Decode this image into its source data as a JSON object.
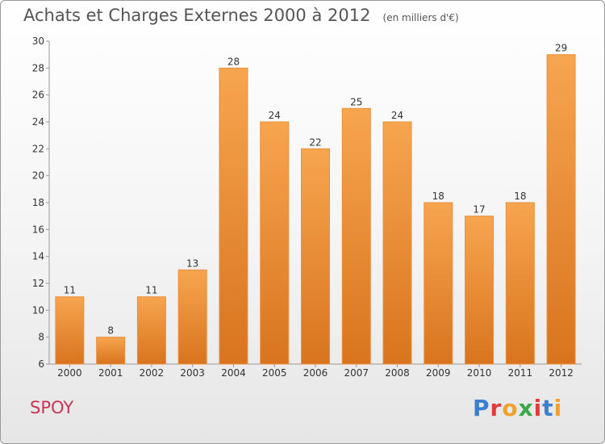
{
  "header": {
    "title": "Achats et Charges Externes 2000 à 2012",
    "subtitle": "(en milliers d'€)"
  },
  "footer": {
    "commune": "SPOY",
    "logo_text": "Proxiti",
    "logo_colors": [
      "#3a7fd0",
      "#e03c3c",
      "#f0a030",
      "#3aa84a",
      "#e03c3c",
      "#3a7fd0",
      "#f0a030"
    ]
  },
  "chart_data": {
    "type": "bar",
    "categories": [
      "2000",
      "2001",
      "2002",
      "2003",
      "2004",
      "2005",
      "2006",
      "2007",
      "2008",
      "2009",
      "2010",
      "2011",
      "2012"
    ],
    "values": [
      11,
      8,
      11,
      13,
      28,
      24,
      22,
      25,
      24,
      18,
      17,
      18,
      29
    ],
    "ylim": [
      6,
      30
    ],
    "yticks": [
      6,
      8,
      10,
      12,
      14,
      16,
      18,
      20,
      22,
      24,
      26,
      28,
      30
    ],
    "grid": false,
    "bar_color_top": "#f7a54f",
    "bar_color_bottom": "#d9741e",
    "bar_edge_color": "#e89040"
  }
}
